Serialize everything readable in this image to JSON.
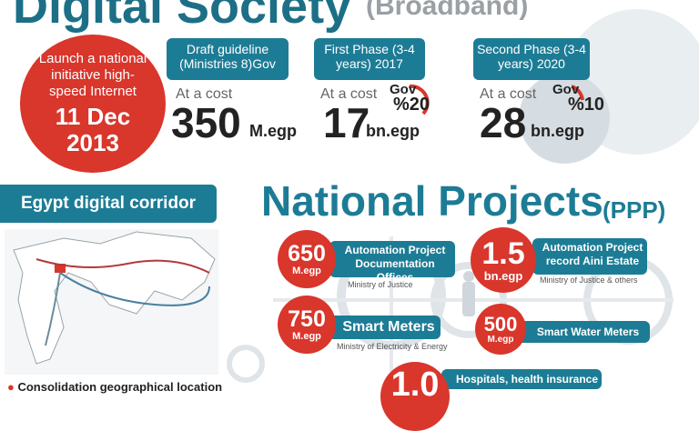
{
  "header": {
    "title": "Digital Society",
    "subtitle": "(Broadband)"
  },
  "launch": {
    "text": "Launch a national initiative high-speed Internet",
    "date": "11 Dec 2013"
  },
  "phases": [
    {
      "label": "Draft guideline (Ministries 8)Gov",
      "cost_label": "At a cost",
      "cost": "350",
      "unit": "M.egp"
    },
    {
      "label": "First Phase (3-4 years) 2017",
      "cost_label": "At a cost",
      "cost": "17",
      "unit": "bn.egp",
      "gov_label": "Gov",
      "gov_share": "%20"
    },
    {
      "label": "Second  Phase (3-4 years) 2020",
      "cost_label": "At a cost",
      "cost": "28",
      "unit": "bn.egp",
      "gov_label": "Gov",
      "gov_share": "%10"
    }
  ],
  "corridor": {
    "title": "Egypt digital corridor",
    "note": "Consolidation geographical location"
  },
  "projects": {
    "title": "National Projects",
    "subtitle": "(PPP)",
    "items": [
      {
        "amount": "650",
        "unit": "M.egp",
        "label": "Automation Project Documentation Offices",
        "ministry": "Ministry of Justice"
      },
      {
        "amount": "1.5",
        "unit": "bn.egp",
        "label": "Automation Project record Aini Estate",
        "ministry": "Ministry of Justice & others"
      },
      {
        "amount": "750",
        "unit": "M.egp",
        "label": "Smart Meters",
        "ministry": "Ministry of Electricity & Energy"
      },
      {
        "amount": "500",
        "unit": "M.egp",
        "label": "Smart  Water Meters"
      },
      {
        "amount": "1.0",
        "label": "Hospitals, health insurance"
      }
    ]
  }
}
